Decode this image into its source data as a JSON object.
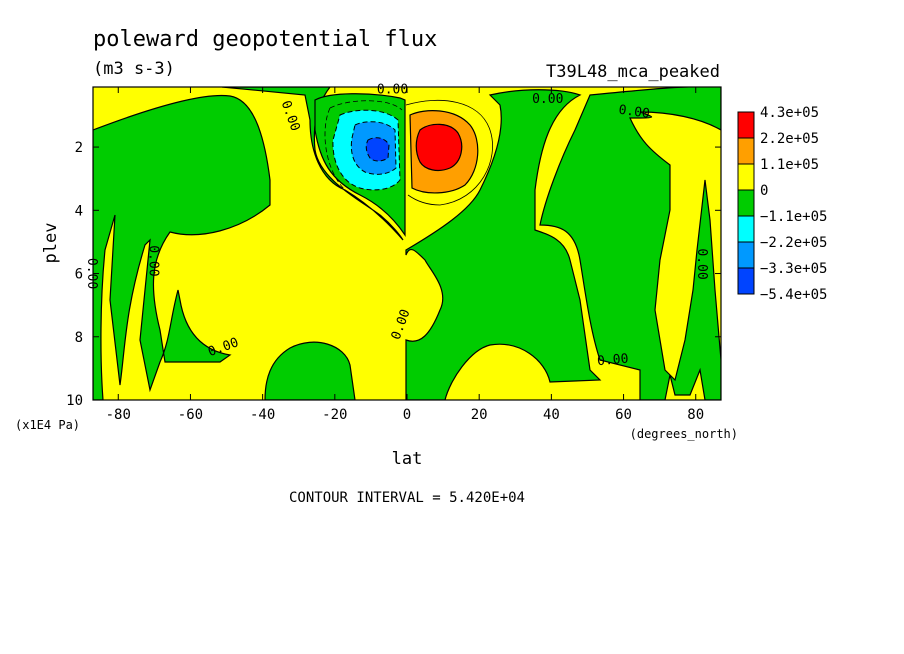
{
  "chart_data": {
    "type": "contour",
    "title": "poleward geopotential flux",
    "units": "(m3 s-3)",
    "run_label": "T39L48_mca_peaked",
    "xlabel": "lat",
    "ylabel": "plev",
    "x_units": "(degrees_north)",
    "y_units": "(x1E4 Pa)",
    "xlim": [
      -87,
      87
    ],
    "ylim": [
      10,
      0.1
    ],
    "x_ticks": [
      -80,
      -60,
      -40,
      -20,
      0,
      20,
      40,
      60,
      80
    ],
    "y_ticks": [
      2,
      4,
      6,
      8,
      10
    ],
    "contour_interval_text": "CONTOUR INTERVAL = 5.420E+04",
    "contour_label": "0.00",
    "legend": {
      "placement": "right",
      "labels": [
        "4.3e+05",
        "2.2e+05",
        "1.1e+05",
        "0",
        "−1.1e+05",
        "−2.2e+05",
        "−3.3e+05",
        "−5.4e+05"
      ],
      "colors": [
        "#ff0000",
        "#ff9f00",
        "#ffff00",
        "#00cc00",
        "#00ffff",
        "#0099ff",
        "#0044ff"
      ]
    },
    "colors": {
      "positive": "#ffff00",
      "negative": "#00cc00",
      "neg_mid": "#00ffff",
      "neg_strong": "#0099ff",
      "neg_max": "#0044ff",
      "pos_mid": "#ff9f00",
      "pos_max": "#ff0000"
    },
    "extrema": [
      {
        "lat": 8,
        "plev": 2.1,
        "sign": "positive",
        "level": "4.3e+05"
      },
      {
        "lat": -9,
        "plev": 2.1,
        "sign": "negative",
        "level": "−5.4e+05"
      }
    ]
  }
}
